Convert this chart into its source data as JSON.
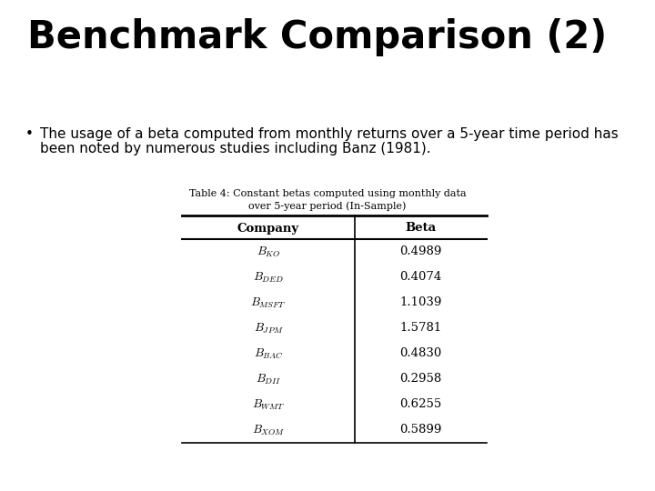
{
  "title": "Benchmark Comparison (2)",
  "bullet_text_line1": "The usage of a beta computed from monthly returns over a 5-year time period has",
  "bullet_text_line2": "been noted by numerous studies including Banz (1981).",
  "table_caption_line1": "Table 4: Constant betas computed using monthly data",
  "table_caption_line2": "over 5-year period (In-Sample)",
  "col_headers": [
    "Company",
    "Beta"
  ],
  "row_companies": [
    "$B_{KO}$",
    "$B_{DED}$",
    "$B_{MSFT}$",
    "$B_{JPM}$",
    "$B_{BAC}$",
    "$B_{DII}$",
    "$B_{WMT}$",
    "$B_{XOM}$"
  ],
  "row_betas": [
    "0.4989",
    "0.4074",
    "1.1039",
    "1.5781",
    "0.4830",
    "0.2958",
    "0.6255",
    "0.5899"
  ],
  "bg_color": "#ffffff",
  "text_color": "#000000",
  "title_fontsize": 30,
  "body_fontsize": 11,
  "table_fontsize": 9.5,
  "caption_fontsize": 8,
  "header_fontsize": 9.5
}
